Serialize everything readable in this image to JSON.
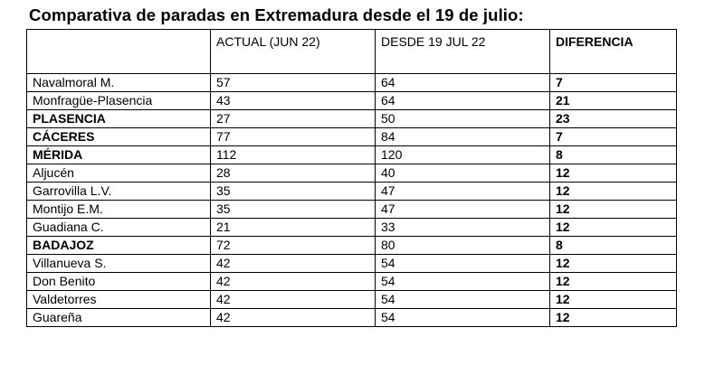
{
  "title": "Comparativa de paradas en Extremadura desde el 19 de julio:",
  "table": {
    "headers": [
      "",
      "ACTUAL (JUN 22)",
      "DESDE 19 JUL 22",
      "DIFERENCIA"
    ],
    "rows": [
      {
        "station": "Navalmoral M.",
        "actual": "57",
        "desde": "64",
        "diferencia": "7",
        "bold_station": false
      },
      {
        "station": "Monfragüe-Plasencia",
        "actual": "43",
        "desde": "64",
        "diferencia": "21",
        "bold_station": false
      },
      {
        "station": "PLASENCIA",
        "actual": "27",
        "desde": "50",
        "diferencia": "23",
        "bold_station": true
      },
      {
        "station": "CÁCERES",
        "actual": "77",
        "desde": "84",
        "diferencia": "7",
        "bold_station": true
      },
      {
        "station": "MÉRIDA",
        "actual": "112",
        "desde": "120",
        "diferencia": "8",
        "bold_station": true
      },
      {
        "station": "Aljucén",
        "actual": "28",
        "desde": "40",
        "diferencia": "12",
        "bold_station": false
      },
      {
        "station": "Garrovilla L.V.",
        "actual": "35",
        "desde": "47",
        "diferencia": "12",
        "bold_station": false
      },
      {
        "station": "Montijo E.M.",
        "actual": "35",
        "desde": "47",
        "diferencia": "12",
        "bold_station": false
      },
      {
        "station": "Guadiana C.",
        "actual": "21",
        "desde": "33",
        "diferencia": "12",
        "bold_station": false
      },
      {
        "station": "BADAJOZ",
        "actual": "72",
        "desde": "80",
        "diferencia": "8",
        "bold_station": true
      },
      {
        "station": "Villanueva S.",
        "actual": "42",
        "desde": "54",
        "diferencia": "12",
        "bold_station": false
      },
      {
        "station": "Don Benito",
        "actual": "42",
        "desde": "54",
        "diferencia": "12",
        "bold_station": false
      },
      {
        "station": "Valdetorres",
        "actual": "42",
        "desde": "54",
        "diferencia": "12",
        "bold_station": false
      },
      {
        "station": "Guareña",
        "actual": "42",
        "desde": "54",
        "diferencia": "12",
        "bold_station": false
      }
    ]
  }
}
